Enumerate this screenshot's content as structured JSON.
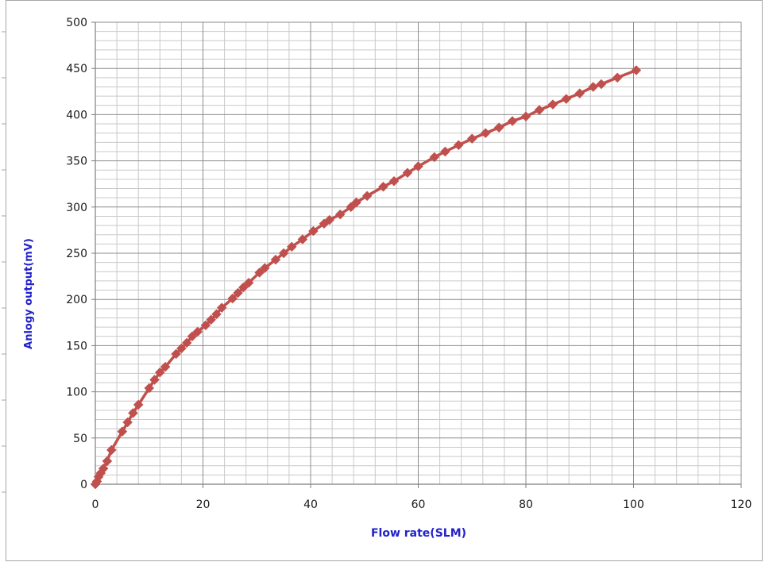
{
  "chart_data": {
    "type": "line",
    "title": "",
    "xlabel": "Flow rate(SLM)",
    "ylabel": "Anlogy output(mV)",
    "xlim": [
      0,
      120
    ],
    "ylim": [
      0,
      500
    ],
    "x_ticks": [
      0,
      20,
      40,
      60,
      80,
      100,
      120
    ],
    "y_ticks": [
      0,
      50,
      100,
      150,
      200,
      250,
      300,
      350,
      400,
      450,
      500
    ],
    "x_tick_labels": [
      "0",
      "20",
      "40",
      "60",
      "80",
      "100",
      "120"
    ],
    "y_tick_labels": [
      "0",
      "50",
      "100",
      "150",
      "200",
      "250",
      "300",
      "350",
      "400",
      "450",
      "500"
    ],
    "grid": true,
    "legend": "none",
    "series": [
      {
        "color": "#c0504d",
        "marker": "diamond",
        "points": [
          [
            0.0,
            0
          ],
          [
            0.3,
            3
          ],
          [
            0.6,
            8
          ],
          [
            1.0,
            12
          ],
          [
            1.5,
            17
          ],
          [
            2.2,
            25
          ],
          [
            3.0,
            37
          ],
          [
            5.0,
            57
          ],
          [
            6.0,
            67
          ],
          [
            7.0,
            77
          ],
          [
            8.0,
            86
          ],
          [
            10.0,
            104
          ],
          [
            11.0,
            113
          ],
          [
            12.0,
            121
          ],
          [
            13.0,
            127
          ],
          [
            15.0,
            141
          ],
          [
            16.0,
            147
          ],
          [
            17.0,
            153
          ],
          [
            18.0,
            160
          ],
          [
            19.0,
            165
          ],
          [
            20.5,
            172
          ],
          [
            21.5,
            178
          ],
          [
            22.5,
            184
          ],
          [
            23.5,
            191
          ],
          [
            25.5,
            201
          ],
          [
            26.5,
            207
          ],
          [
            27.5,
            213
          ],
          [
            28.5,
            218
          ],
          [
            30.5,
            229
          ],
          [
            31.5,
            234
          ],
          [
            33.5,
            243
          ],
          [
            35.0,
            250
          ],
          [
            36.5,
            257
          ],
          [
            38.5,
            265
          ],
          [
            40.5,
            274
          ],
          [
            42.5,
            282
          ],
          [
            43.5,
            286
          ],
          [
            45.5,
            292
          ],
          [
            47.5,
            300
          ],
          [
            48.5,
            305
          ],
          [
            50.5,
            312
          ],
          [
            53.5,
            322
          ],
          [
            55.5,
            328
          ],
          [
            58.0,
            337
          ],
          [
            60.0,
            344
          ],
          [
            63.0,
            354
          ],
          [
            65.0,
            360
          ],
          [
            67.5,
            367
          ],
          [
            70.0,
            374
          ],
          [
            72.5,
            380
          ],
          [
            75.0,
            386
          ],
          [
            77.5,
            393
          ],
          [
            80.0,
            398
          ],
          [
            82.5,
            405
          ],
          [
            85.0,
            411
          ],
          [
            87.5,
            417
          ],
          [
            90.0,
            423
          ],
          [
            92.5,
            430
          ],
          [
            94.0,
            433
          ],
          [
            97.0,
            440
          ],
          [
            100.5,
            448
          ]
        ]
      }
    ]
  }
}
